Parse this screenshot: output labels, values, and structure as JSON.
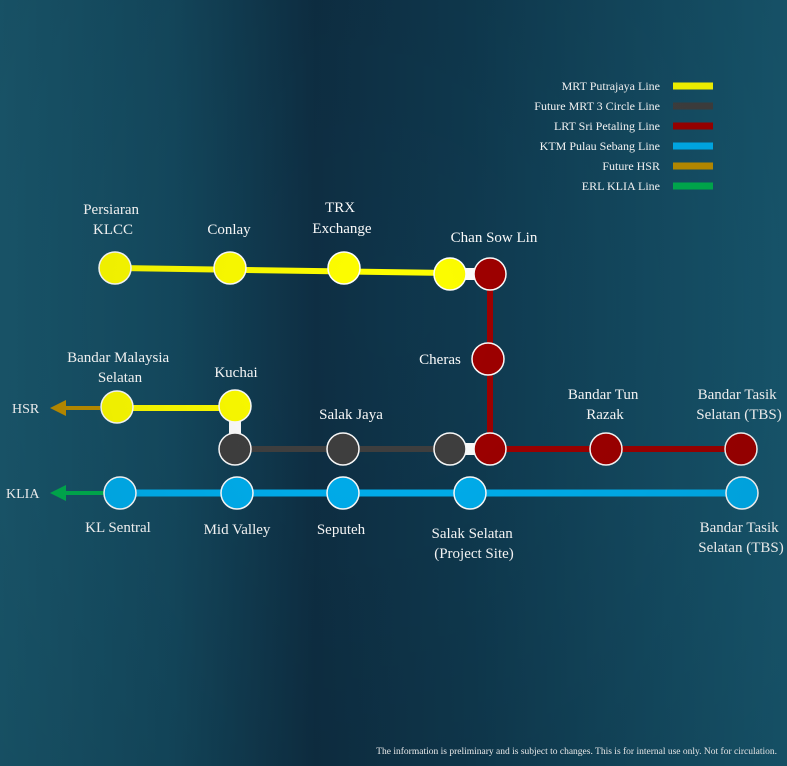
{
  "colors": {
    "mrt_putrajaya": "#ffff00",
    "mrt3_circle": "#404040",
    "lrt_sri_petaling": "#a00000",
    "ktm_pulau_sebang": "#00b0f0",
    "future_hsr": "#bf9000",
    "erl_klia": "#00b050"
  },
  "legend": [
    {
      "label": "MRT Putrajaya Line",
      "color": "#ffff00"
    },
    {
      "label": "Future MRT 3 Circle Line",
      "color": "#404040"
    },
    {
      "label": "LRT Sri Petaling Line",
      "color": "#a00000"
    },
    {
      "label": "KTM Pulau Sebang Line",
      "color": "#00b0f0"
    },
    {
      "label": "Future HSR",
      "color": "#bf9000"
    },
    {
      "label": "ERL KLIA Line",
      "color": "#00b050"
    }
  ],
  "stations": {
    "persiaran_klcc": [
      "Persiaran",
      "KLCC"
    ],
    "conlay": [
      "Conlay"
    ],
    "trx_exchange": [
      "TRX",
      "Exchange"
    ],
    "chan_sow_lin": [
      "Chan Sow Lin"
    ],
    "cheras": [
      "Cheras"
    ],
    "bandar_malaysia_selatan": [
      "Bandar Malaysia",
      "Selatan"
    ],
    "kuchai": [
      "Kuchai"
    ],
    "salak_jaya": [
      "Salak Jaya"
    ],
    "bandar_tun_razak": [
      "Bandar Tun",
      "Razak"
    ],
    "bandar_tasik_selatan_lrt": [
      "Bandar Tasik",
      "Selatan (TBS)"
    ],
    "kl_sentral": [
      "KL Sentral"
    ],
    "mid_valley": [
      "Mid Valley"
    ],
    "seputeh": [
      "Seputeh"
    ],
    "salak_selatan": [
      "Salak Selatan",
      "(Project Site)"
    ],
    "bandar_tasik_selatan_ktm": [
      "Bandar Tasik",
      "Selatan (TBS)"
    ]
  },
  "external": {
    "hsr": "HSR",
    "klia": "KLIA"
  },
  "footer": {
    "disclaimer": "The information is preliminary and is subject to changes. This is for internal use only. Not for circulation."
  }
}
